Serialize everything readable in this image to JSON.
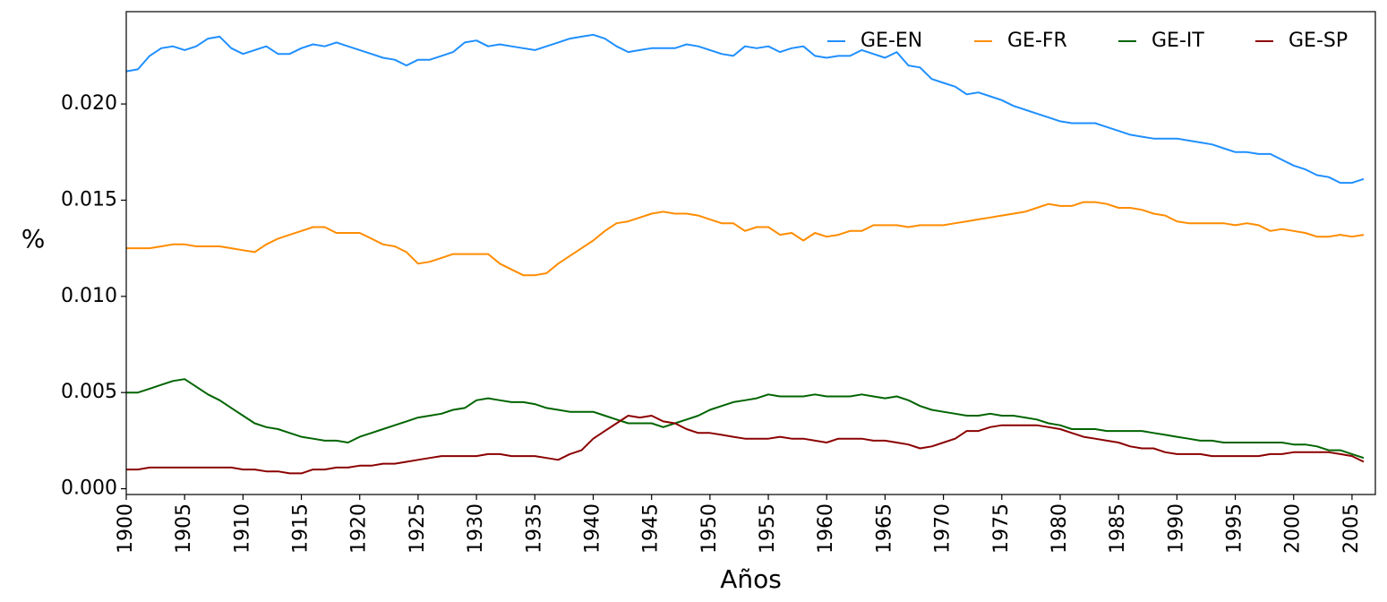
{
  "chart_data": {
    "type": "line",
    "title": "",
    "xlabel": "Años",
    "ylabel": "%",
    "xlim": [
      1900,
      2007
    ],
    "ylim": [
      -0.0003,
      0.0248
    ],
    "grid": false,
    "legend": {
      "placement": "top-right",
      "columns": 4
    },
    "x_ticks": [
      1900,
      1905,
      1910,
      1915,
      1920,
      1925,
      1930,
      1935,
      1940,
      1945,
      1950,
      1955,
      1960,
      1965,
      1970,
      1975,
      1980,
      1985,
      1990,
      1995,
      2000,
      2005
    ],
    "y_ticks": [
      {
        "value": 0.0,
        "label": "0.000"
      },
      {
        "value": 0.005,
        "label": "0.005"
      },
      {
        "value": 0.01,
        "label": "0.010"
      },
      {
        "value": 0.015,
        "label": "0.015"
      },
      {
        "value": 0.02,
        "label": "0.020"
      }
    ],
    "x": [
      1900,
      1901,
      1902,
      1903,
      1904,
      1905,
      1906,
      1907,
      1908,
      1909,
      1910,
      1911,
      1912,
      1913,
      1914,
      1915,
      1916,
      1917,
      1918,
      1919,
      1920,
      1921,
      1922,
      1923,
      1924,
      1925,
      1926,
      1927,
      1928,
      1929,
      1930,
      1931,
      1932,
      1933,
      1934,
      1935,
      1936,
      1937,
      1938,
      1939,
      1940,
      1941,
      1942,
      1943,
      1944,
      1945,
      1946,
      1947,
      1948,
      1949,
      1950,
      1951,
      1952,
      1953,
      1954,
      1955,
      1956,
      1957,
      1958,
      1959,
      1960,
      1961,
      1962,
      1963,
      1964,
      1965,
      1966,
      1967,
      1968,
      1969,
      1970,
      1971,
      1972,
      1973,
      1974,
      1975,
      1976,
      1977,
      1978,
      1979,
      1980,
      1981,
      1982,
      1983,
      1984,
      1985,
      1986,
      1987,
      1988,
      1989,
      1990,
      1991,
      1992,
      1993,
      1994,
      1995,
      1996,
      1997,
      1998,
      1999,
      2000,
      2001,
      2002,
      2003,
      2004,
      2005,
      2006
    ],
    "series": [
      {
        "name": "GE-EN",
        "color": "#1f8fff",
        "values": [
          0.0217,
          0.0218,
          0.0225,
          0.0229,
          0.023,
          0.0228,
          0.023,
          0.0234,
          0.0235,
          0.0229,
          0.0226,
          0.0228,
          0.023,
          0.0226,
          0.0226,
          0.0229,
          0.0231,
          0.023,
          0.0232,
          0.023,
          0.0228,
          0.0226,
          0.0224,
          0.0223,
          0.022,
          0.0223,
          0.0223,
          0.0225,
          0.0227,
          0.0232,
          0.0233,
          0.023,
          0.0231,
          0.023,
          0.0229,
          0.0228,
          0.023,
          0.0232,
          0.0234,
          0.0235,
          0.0236,
          0.0234,
          0.023,
          0.0227,
          0.0228,
          0.0229,
          0.0229,
          0.0229,
          0.0231,
          0.023,
          0.0228,
          0.0226,
          0.0225,
          0.023,
          0.0229,
          0.023,
          0.0227,
          0.0229,
          0.023,
          0.0225,
          0.0224,
          0.0225,
          0.0225,
          0.0228,
          0.0226,
          0.0224,
          0.0227,
          0.022,
          0.0219,
          0.0213,
          0.0211,
          0.0209,
          0.0205,
          0.0206,
          0.0204,
          0.0202,
          0.0199,
          0.0197,
          0.0195,
          0.0193,
          0.0191,
          0.019,
          0.019,
          0.019,
          0.0188,
          0.0186,
          0.0184,
          0.0183,
          0.0182,
          0.0182,
          0.0182,
          0.0181,
          0.018,
          0.0179,
          0.0177,
          0.0175,
          0.0175,
          0.0174,
          0.0174,
          0.0171,
          0.0168,
          0.0166,
          0.0163,
          0.0162,
          0.0159,
          0.0159,
          0.0161
        ]
      },
      {
        "name": "GE-FR",
        "color": "#ff8c00",
        "values": [
          0.0125,
          0.0125,
          0.0125,
          0.0126,
          0.0127,
          0.0127,
          0.0126,
          0.0126,
          0.0126,
          0.0125,
          0.0124,
          0.0123,
          0.0127,
          0.013,
          0.0132,
          0.0134,
          0.0136,
          0.0136,
          0.0133,
          0.0133,
          0.0133,
          0.013,
          0.0127,
          0.0126,
          0.0123,
          0.0117,
          0.0118,
          0.012,
          0.0122,
          0.0122,
          0.0122,
          0.0122,
          0.0117,
          0.0114,
          0.0111,
          0.0111,
          0.0112,
          0.0117,
          0.0121,
          0.0125,
          0.0129,
          0.0134,
          0.0138,
          0.0139,
          0.0141,
          0.0143,
          0.0144,
          0.0143,
          0.0143,
          0.0142,
          0.014,
          0.0138,
          0.0138,
          0.0134,
          0.0136,
          0.0136,
          0.0132,
          0.0133,
          0.0129,
          0.0133,
          0.0131,
          0.0132,
          0.0134,
          0.0134,
          0.0137,
          0.0137,
          0.0137,
          0.0136,
          0.0137,
          0.0137,
          0.0137,
          0.0138,
          0.0139,
          0.014,
          0.0141,
          0.0142,
          0.0143,
          0.0144,
          0.0146,
          0.0148,
          0.0147,
          0.0147,
          0.0149,
          0.0149,
          0.0148,
          0.0146,
          0.0146,
          0.0145,
          0.0143,
          0.0142,
          0.0139,
          0.0138,
          0.0138,
          0.0138,
          0.0138,
          0.0137,
          0.0138,
          0.0137,
          0.0134,
          0.0135,
          0.0134,
          0.0133,
          0.0131,
          0.0131,
          0.0132,
          0.0131,
          0.0132
        ]
      },
      {
        "name": "GE-IT",
        "color": "#006400",
        "values": [
          0.005,
          0.005,
          0.0052,
          0.0054,
          0.0056,
          0.0057,
          0.0053,
          0.0049,
          0.0046,
          0.0042,
          0.0038,
          0.0034,
          0.0032,
          0.0031,
          0.0029,
          0.0027,
          0.0026,
          0.0025,
          0.0025,
          0.0024,
          0.0027,
          0.0029,
          0.0031,
          0.0033,
          0.0035,
          0.0037,
          0.0038,
          0.0039,
          0.0041,
          0.0042,
          0.0046,
          0.0047,
          0.0046,
          0.0045,
          0.0045,
          0.0044,
          0.0042,
          0.0041,
          0.004,
          0.004,
          0.004,
          0.0038,
          0.0036,
          0.0034,
          0.0034,
          0.0034,
          0.0032,
          0.0034,
          0.0036,
          0.0038,
          0.0041,
          0.0043,
          0.0045,
          0.0046,
          0.0047,
          0.0049,
          0.0048,
          0.0048,
          0.0048,
          0.0049,
          0.0048,
          0.0048,
          0.0048,
          0.0049,
          0.0048,
          0.0047,
          0.0048,
          0.0046,
          0.0043,
          0.0041,
          0.004,
          0.0039,
          0.0038,
          0.0038,
          0.0039,
          0.0038,
          0.0038,
          0.0037,
          0.0036,
          0.0034,
          0.0033,
          0.0031,
          0.0031,
          0.0031,
          0.003,
          0.003,
          0.003,
          0.003,
          0.0029,
          0.0028,
          0.0027,
          0.0026,
          0.0025,
          0.0025,
          0.0024,
          0.0024,
          0.0024,
          0.0024,
          0.0024,
          0.0024,
          0.0023,
          0.0023,
          0.0022,
          0.002,
          0.002,
          0.0018,
          0.0016
        ]
      },
      {
        "name": "GE-SP",
        "color": "#8b0000",
        "values": [
          0.001,
          0.001,
          0.0011,
          0.0011,
          0.0011,
          0.0011,
          0.0011,
          0.0011,
          0.0011,
          0.0011,
          0.001,
          0.001,
          0.0009,
          0.0009,
          0.0008,
          0.0008,
          0.001,
          0.001,
          0.0011,
          0.0011,
          0.0012,
          0.0012,
          0.0013,
          0.0013,
          0.0014,
          0.0015,
          0.0016,
          0.0017,
          0.0017,
          0.0017,
          0.0017,
          0.0018,
          0.0018,
          0.0017,
          0.0017,
          0.0017,
          0.0016,
          0.0015,
          0.0018,
          0.002,
          0.0026,
          0.003,
          0.0034,
          0.0038,
          0.0037,
          0.0038,
          0.0035,
          0.0034,
          0.0031,
          0.0029,
          0.0029,
          0.0028,
          0.0027,
          0.0026,
          0.0026,
          0.0026,
          0.0027,
          0.0026,
          0.0026,
          0.0025,
          0.0024,
          0.0026,
          0.0026,
          0.0026,
          0.0025,
          0.0025,
          0.0024,
          0.0023,
          0.0021,
          0.0022,
          0.0024,
          0.0026,
          0.003,
          0.003,
          0.0032,
          0.0033,
          0.0033,
          0.0033,
          0.0033,
          0.0032,
          0.0031,
          0.0029,
          0.0027,
          0.0026,
          0.0025,
          0.0024,
          0.0022,
          0.0021,
          0.0021,
          0.0019,
          0.0018,
          0.0018,
          0.0018,
          0.0017,
          0.0017,
          0.0017,
          0.0017,
          0.0017,
          0.0018,
          0.0018,
          0.0019,
          0.0019,
          0.0019,
          0.0019,
          0.0018,
          0.0017,
          0.0014
        ]
      }
    ]
  }
}
